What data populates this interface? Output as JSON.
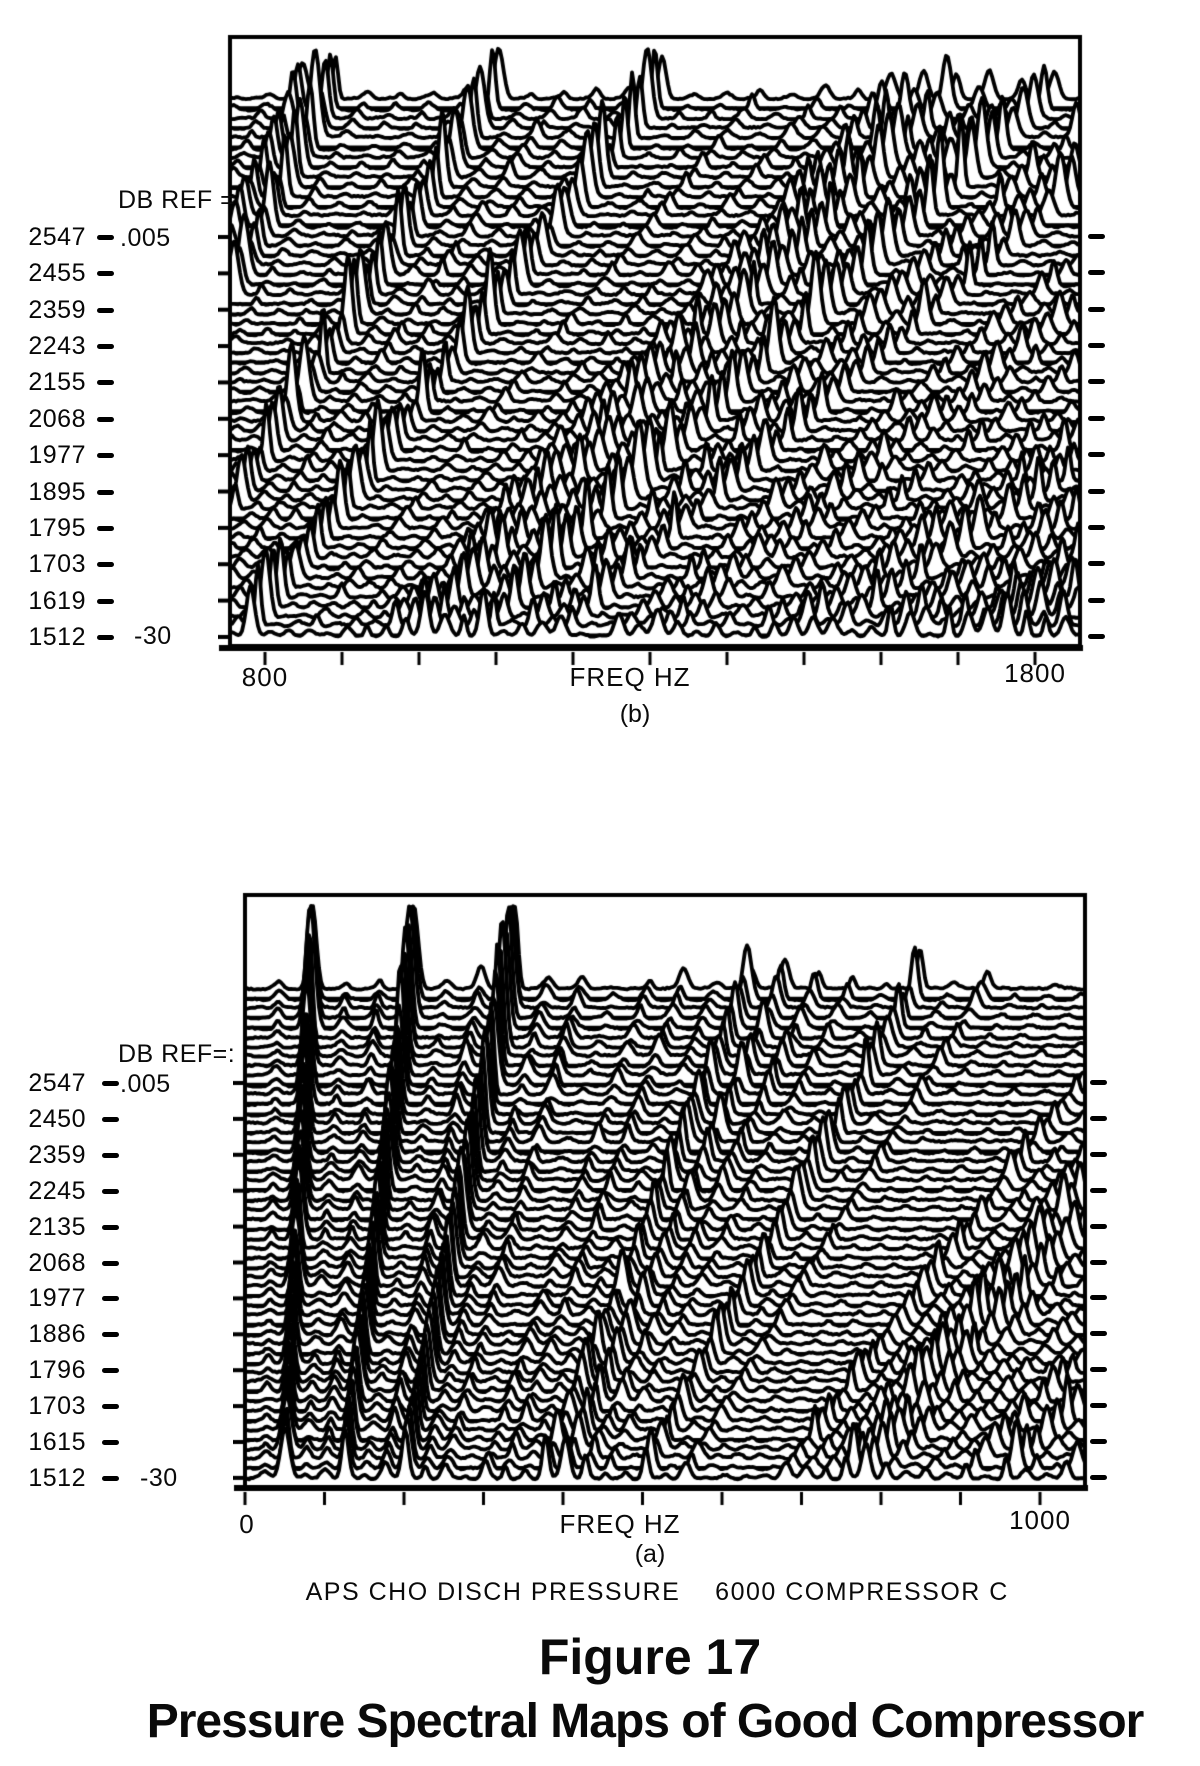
{
  "page": {
    "background": "#ffffff",
    "ink_color": "#000000"
  },
  "figure": {
    "number_label": "Figure 17",
    "title": "Pressure Spectral Maps of Good Compressor"
  },
  "chart_data": [
    {
      "id": "b",
      "position": "top",
      "type": "line",
      "variant": "waterfall-spectral-map",
      "sublabel": "(b)",
      "xlabel": "FREQ HZ",
      "xlim": [
        800,
        1800
      ],
      "x_tick_labels": [
        "800",
        "1800"
      ],
      "db_ref_label": "DB REF =",
      "db_ref_value": ".005",
      "db_floor_label": "-30",
      "ylim_db": [
        -30,
        0
      ],
      "y_axis_units": "RPM",
      "rpm_labels": [
        2547,
        2455,
        2359,
        2243,
        2155,
        2068,
        1977,
        1895,
        1795,
        1703,
        1619,
        1512
      ],
      "legend": "none",
      "grid": "off"
    },
    {
      "id": "a",
      "position": "bottom",
      "type": "line",
      "variant": "waterfall-spectral-map",
      "sublabel": "(a)",
      "xlabel": "FREQ HZ",
      "xlim": [
        0,
        1000
      ],
      "x_tick_labels": [
        "0",
        "1000"
      ],
      "db_ref_label": "DB REF=:",
      "db_ref_value": ".005",
      "db_floor_label": "-30",
      "ylim_db": [
        -30,
        0
      ],
      "y_axis_units": "RPM",
      "rpm_labels": [
        2547,
        2450,
        2359,
        2245,
        2135,
        2068,
        1977,
        1886,
        1796,
        1703,
        1615,
        1512
      ],
      "footer_left": "APS CHO DISCH PRESSURE",
      "footer_right": "6000 COMPRESSOR C",
      "legend": "none",
      "grid": "off"
    }
  ]
}
